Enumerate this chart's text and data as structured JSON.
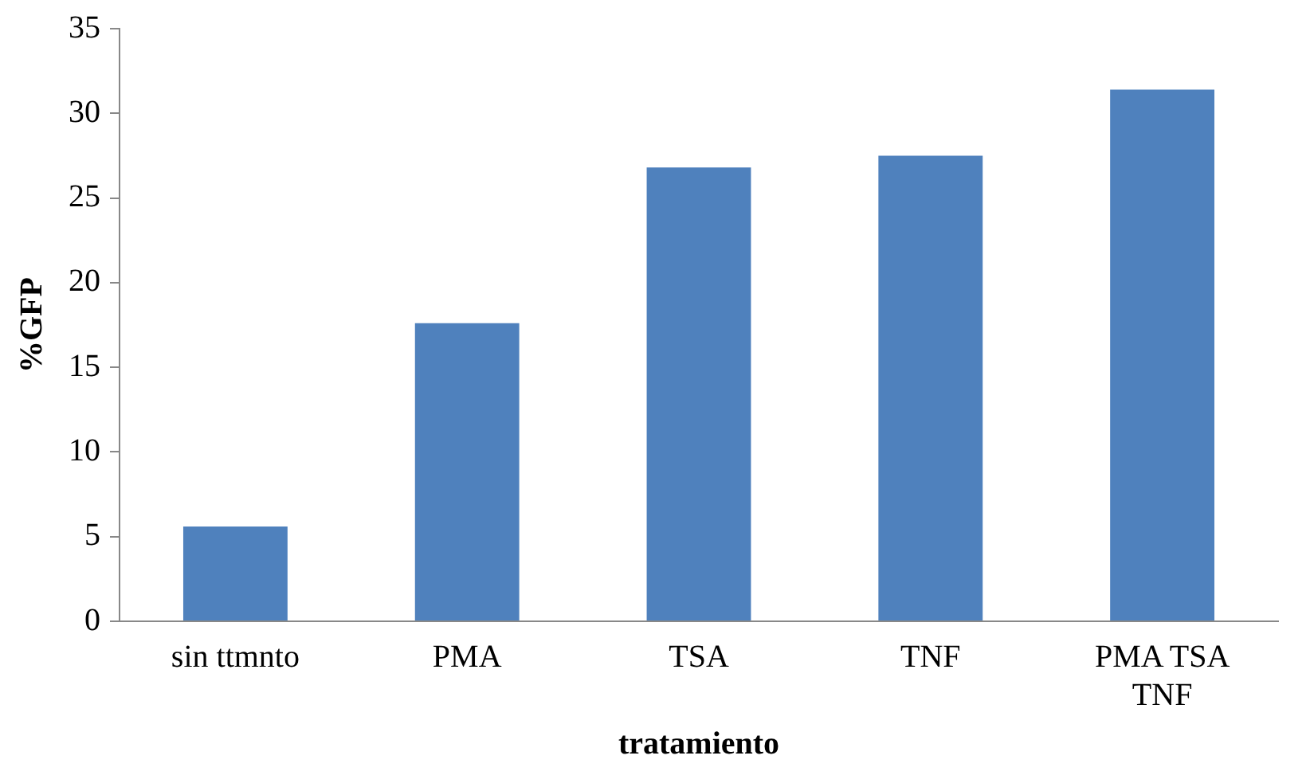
{
  "chart_data": {
    "type": "bar",
    "xlabel": "tratamiento",
    "ylabel": "%GFP",
    "categories": [
      "sin ttmnto",
      "PMA",
      "TSA",
      "TNF",
      "PMA TSA TNF"
    ],
    "values": [
      5.6,
      17.6,
      26.8,
      27.5,
      31.4
    ],
    "color": "#4f81bd",
    "ylim": [
      0,
      35
    ],
    "yticks": [
      0,
      5,
      10,
      15,
      20,
      25,
      30,
      35
    ],
    "grid": false,
    "legend": false
  }
}
